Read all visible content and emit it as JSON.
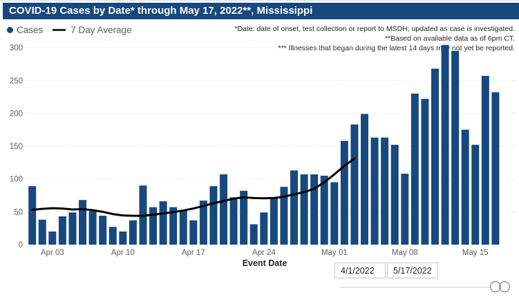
{
  "title": "COVID-19 Cases by Date* through May 17, 2022**, Mississippi",
  "legend": {
    "cases_label": "Cases",
    "avg_label": "7 Day Average"
  },
  "footnotes": [
    "*Date: date of onset, test collection or report to MSDH; updated as case is investigated.",
    "**Based on available data as of 6pm CT.",
    "*** Illnesses that began during the latest 14 days may not yet be reported."
  ],
  "x_axis": {
    "label": "Event Date",
    "tick_labels": [
      "Apr 03",
      "Apr 10",
      "Apr 17",
      "Apr 24",
      "May 01",
      "May 08",
      "May 15"
    ],
    "tick_day_indices": [
      2,
      9,
      16,
      23,
      30,
      37,
      44
    ]
  },
  "y_axis": {
    "ticks": [
      0,
      50,
      100,
      150,
      200,
      250,
      300
    ]
  },
  "date_filters": {
    "start": "4/1/2022",
    "end": "5/17/2022"
  },
  "colors": {
    "bar": "#17497E",
    "average_line": "#000000",
    "title_bg": "#17497E",
    "title_text": "#FFFFFF",
    "legend_text": "#605E5C",
    "axis_text": "#605E5C",
    "footnote_text": "#252423",
    "gridline": "#D8D8D8"
  },
  "chart_data": {
    "type": "bar",
    "title": "COVID-19 Cases by Date* through May 17, 2022**, Mississippi",
    "xlabel": "Event Date",
    "ylabel": "",
    "ylim": [
      0,
      300
    ],
    "grid": "dotted horizontal",
    "legend_position": "top-left",
    "categories": [
      "Apr 1",
      "Apr 2",
      "Apr 3",
      "Apr 4",
      "Apr 5",
      "Apr 6",
      "Apr 7",
      "Apr 8",
      "Apr 9",
      "Apr 10",
      "Apr 11",
      "Apr 12",
      "Apr 13",
      "Apr 14",
      "Apr 15",
      "Apr 16",
      "Apr 17",
      "Apr 18",
      "Apr 19",
      "Apr 20",
      "Apr 21",
      "Apr 22",
      "Apr 23",
      "Apr 24",
      "Apr 25",
      "Apr 26",
      "Apr 27",
      "Apr 28",
      "Apr 29",
      "Apr 30",
      "May 1",
      "May 2",
      "May 3",
      "May 4",
      "May 5",
      "May 6",
      "May 7",
      "May 8",
      "May 9",
      "May 10",
      "May 11",
      "May 12",
      "May 13",
      "May 14",
      "May 15",
      "May 16",
      "May 17"
    ],
    "series": [
      {
        "name": "Cases",
        "type": "bar",
        "color": "#17497E",
        "values": [
          89,
          38,
          20,
          43,
          49,
          68,
          51,
          44,
          27,
          20,
          37,
          90,
          57,
          66,
          57,
          52,
          37,
          67,
          89,
          107,
          72,
          82,
          31,
          49,
          72,
          88,
          113,
          107,
          107,
          105,
          95,
          158,
          183,
          199,
          163,
          163,
          152,
          108,
          230,
          222,
          268,
          304,
          295,
          175,
          152,
          257,
          232
        ]
      },
      {
        "name": "7 Day Average",
        "type": "line",
        "color": "#000000",
        "values": [
          53,
          54.5,
          55.5,
          55,
          53.5,
          54,
          52.5,
          50,
          46.5,
          44.5,
          44,
          44,
          45.5,
          47.5,
          49.5,
          52,
          55,
          59,
          63,
          66.5,
          70,
          72,
          71,
          70.5,
          71,
          73,
          76.5,
          80,
          85,
          95,
          107,
          120,
          131,
          null,
          null,
          null,
          null,
          null,
          null,
          null,
          null,
          null,
          null,
          null,
          null,
          null,
          null
        ]
      }
    ]
  }
}
